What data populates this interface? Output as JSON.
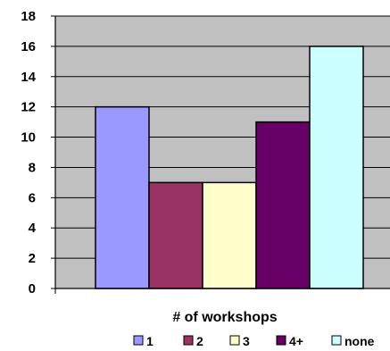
{
  "chart_data": {
    "type": "bar",
    "categories": [
      "1",
      "2",
      "3",
      "4+",
      "none"
    ],
    "values": [
      12,
      7,
      7,
      11,
      16
    ],
    "colors": [
      "#9999FF",
      "#993366",
      "#FFFFCC",
      "#660066",
      "#CCFFFF"
    ],
    "title": "",
    "xlabel": "# of workshops",
    "ylabel": "",
    "ylim": [
      0,
      18
    ],
    "yticks": [
      0,
      2,
      4,
      6,
      8,
      10,
      12,
      14,
      16,
      18
    ],
    "grid": true,
    "plot_background": "#C0C0C0",
    "legend": {
      "placement": "bottom",
      "entries": [
        "1",
        "2",
        "3",
        "4+",
        "none"
      ]
    }
  }
}
